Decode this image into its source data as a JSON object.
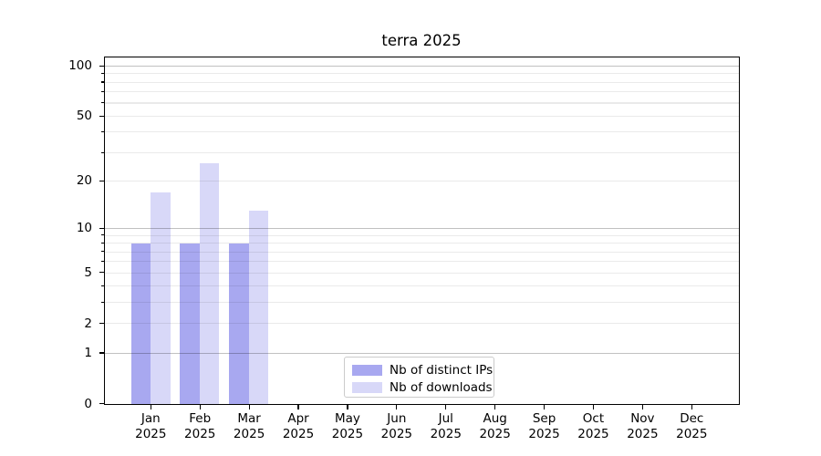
{
  "chart_data": {
    "type": "bar",
    "title": "terra 2025",
    "x": {
      "months": [
        "Jan",
        "Feb",
        "Mar",
        "Apr",
        "May",
        "Jun",
        "Jul",
        "Aug",
        "Sep",
        "Oct",
        "Nov",
        "Dec"
      ],
      "year": "2025"
    },
    "series": [
      {
        "name": "Nb of distinct IPs",
        "color": "#a8a8f0",
        "values": [
          8,
          8,
          8,
          0,
          0,
          0,
          0,
          0,
          0,
          0,
          0,
          0
        ]
      },
      {
        "name": "Nb of downloads",
        "color": "#d8d8f8",
        "values": [
          17,
          26,
          13,
          0,
          0,
          0,
          0,
          0,
          0,
          0,
          0,
          0
        ]
      }
    ],
    "yaxis": {
      "scale": "log1p",
      "ylim": [
        0,
        112
      ],
      "tick_labels": [
        0,
        1,
        2,
        5,
        10,
        20,
        50,
        100
      ],
      "major_grid": [
        1,
        10,
        100
      ],
      "minor_grid": [
        2,
        3,
        4,
        5,
        6,
        7,
        8,
        9,
        20,
        30,
        40,
        50,
        60,
        70,
        80,
        90
      ],
      "major_grid_color": "#c0c0c0",
      "minor_grid_color": "#eaeaea"
    },
    "legend": {
      "position": "lower center"
    },
    "grid": true,
    "background": "#ffffff"
  }
}
